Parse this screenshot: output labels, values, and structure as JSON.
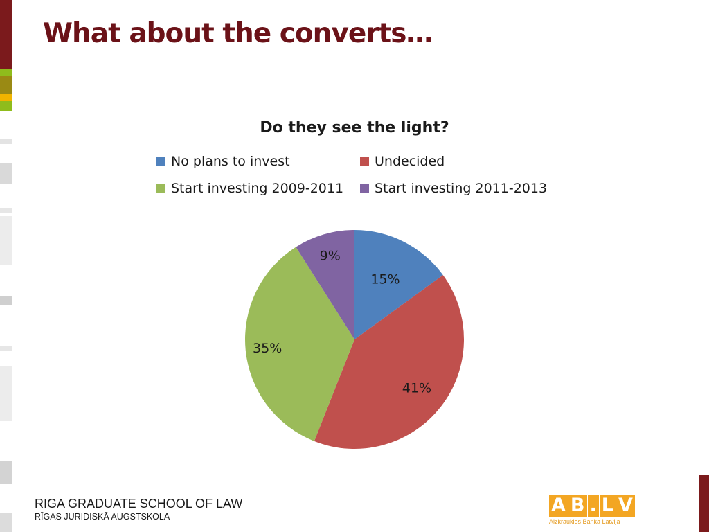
{
  "slide": {
    "title": "What about the converts…"
  },
  "chart_data": {
    "type": "pie",
    "title": "Do they see the light?",
    "legend_position": "top",
    "slices": [
      {
        "label": "No plans to invest",
        "value": 15,
        "display": "15%",
        "color": "#4f81bd"
      },
      {
        "label": "Undecided",
        "value": 41,
        "display": "41%",
        "color": "#c0504d"
      },
      {
        "label": "Start investing 2009-2011",
        "value": 35,
        "display": "35%",
        "color": "#9bbb59"
      },
      {
        "label": "Start investing 2011-2013",
        "value": 9,
        "display": "9%",
        "color": "#8064a2"
      }
    ]
  },
  "footer": {
    "school_en": "RIGA GRADUATE SCHOOL OF LAW",
    "school_lv": "RĪGAS JURIDISKĀ AUGSTSKOLA"
  },
  "logo": {
    "mark": [
      "A",
      "B",
      ".",
      "L",
      "V"
    ],
    "tagline": "Aizkraukles Banka Latvija"
  },
  "theme": {
    "title_color": "#6b1218",
    "accent_dark_red": "#7b1a1c",
    "accent_green": "#8fbc1c",
    "accent_olive": "#9a8a14",
    "accent_yellow": "#f0b400",
    "strip_gray": "#d9d9d9"
  }
}
